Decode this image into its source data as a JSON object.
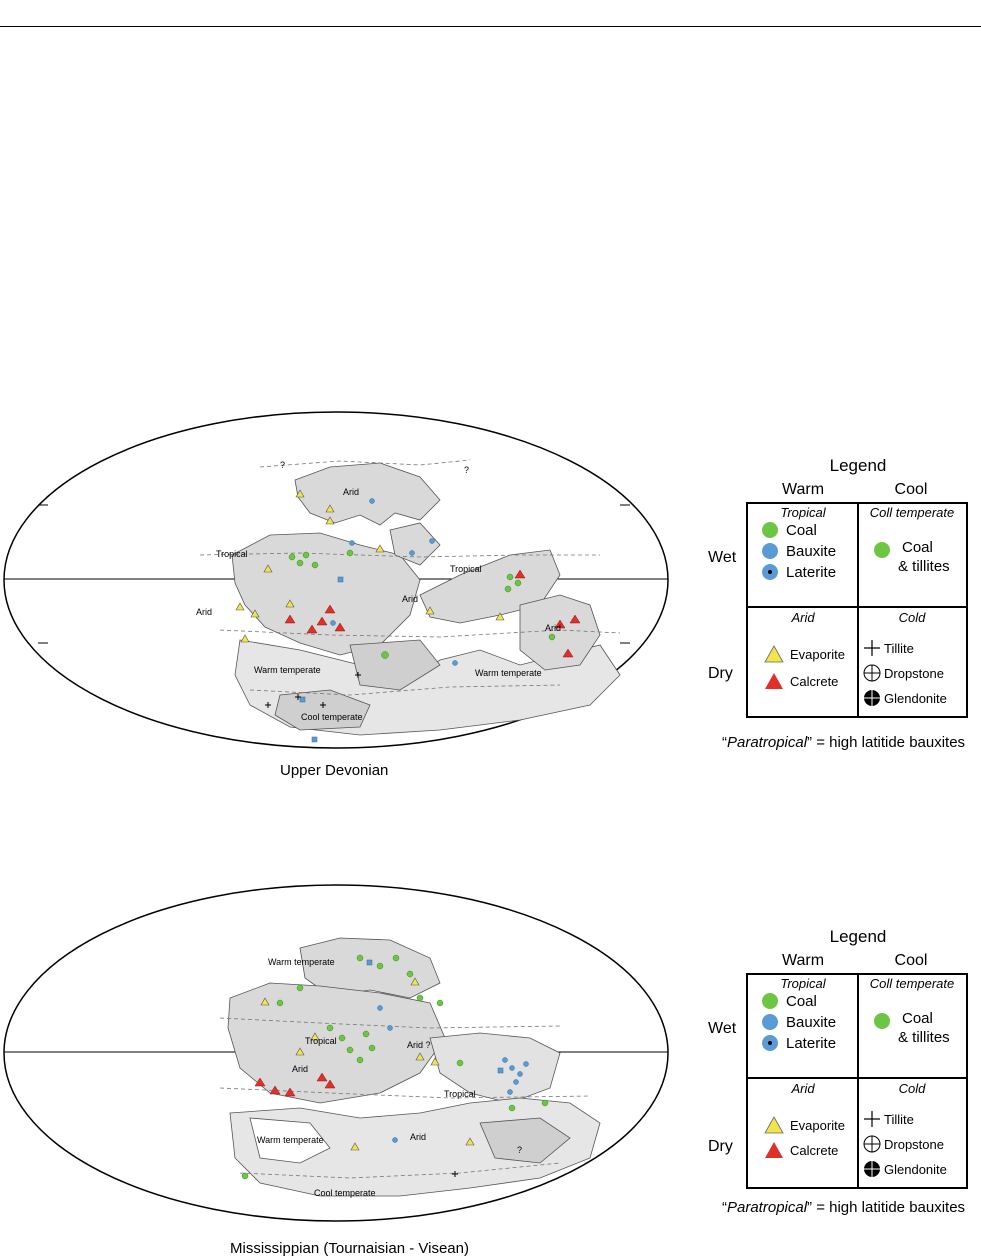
{
  "maps": [
    {
      "title": "Upper Devonian",
      "region_labels": [
        "Arid",
        "Tropical",
        "Tropical",
        "Arid",
        "Arid",
        "Arid",
        "Warm temperate",
        "Warm temperate",
        "Cool temperate",
        "?",
        "?"
      ],
      "legend": {
        "title": "Legend",
        "col_warm": "Warm",
        "col_cool": "Cool",
        "row_wet": "Wet",
        "row_dry": "Dry",
        "cell_tropical": "Tropical",
        "cell_cool_temperate": "Coll temperate",
        "cell_arid": "Arid",
        "cell_cold": "Cold",
        "coal": "Coal",
        "bauxite": "Bauxite",
        "laterite": "Laterite",
        "coal_tillites_1": "Coal",
        "coal_tillites_2": "& tillites",
        "evaporite": "Evaporite",
        "calcrete": "Calcrete",
        "tillite": "Tillite",
        "dropstone": "Dropstone",
        "glendonite": "Glendonite",
        "footnote_italic": "Paratropical",
        "footnote_rest": "” = high latitide bauxites",
        "footnote_open": "“"
      }
    },
    {
      "title": "Mississippian (Tournaisian - Visean)",
      "region_labels": [
        "Warm temperate",
        "Tropical",
        "Arid ?",
        "Arid",
        "Tropical",
        "Warm temperate",
        "Arid",
        "Cool temperate",
        "?"
      ],
      "legend": {
        "title": "Legend",
        "col_warm": "Warm",
        "col_cool": "Cool",
        "row_wet": "Wet",
        "row_dry": "Dry",
        "cell_tropical": "Tropical",
        "cell_cool_temperate": "Coll temperate",
        "cell_arid": "Arid",
        "cell_cold": "Cold",
        "coal": "Coal",
        "bauxite": "Bauxite",
        "laterite": "Laterite",
        "coal_tillites_1": "Coal",
        "coal_tillites_2": "& tillites",
        "evaporite": "Evaporite",
        "calcrete": "Calcrete",
        "tillite": "Tillite",
        "dropstone": "Dropstone",
        "glendonite": "Glendonite",
        "footnote_italic": "Paratropical",
        "footnote_rest": "” = high latitide bauxites",
        "footnote_open": "“"
      }
    }
  ],
  "colors": {
    "coal": "#6cc644",
    "bauxite": "#5b9bd5",
    "evaporite": "#f2e44b",
    "calcrete": "#e0302a",
    "land": "#d9d9d9",
    "outline": "#555555"
  },
  "icons": [
    "coal-icon",
    "bauxite-icon",
    "laterite-icon",
    "evaporite-icon",
    "calcrete-icon",
    "tillite-icon",
    "dropstone-icon",
    "glendonite-icon"
  ]
}
